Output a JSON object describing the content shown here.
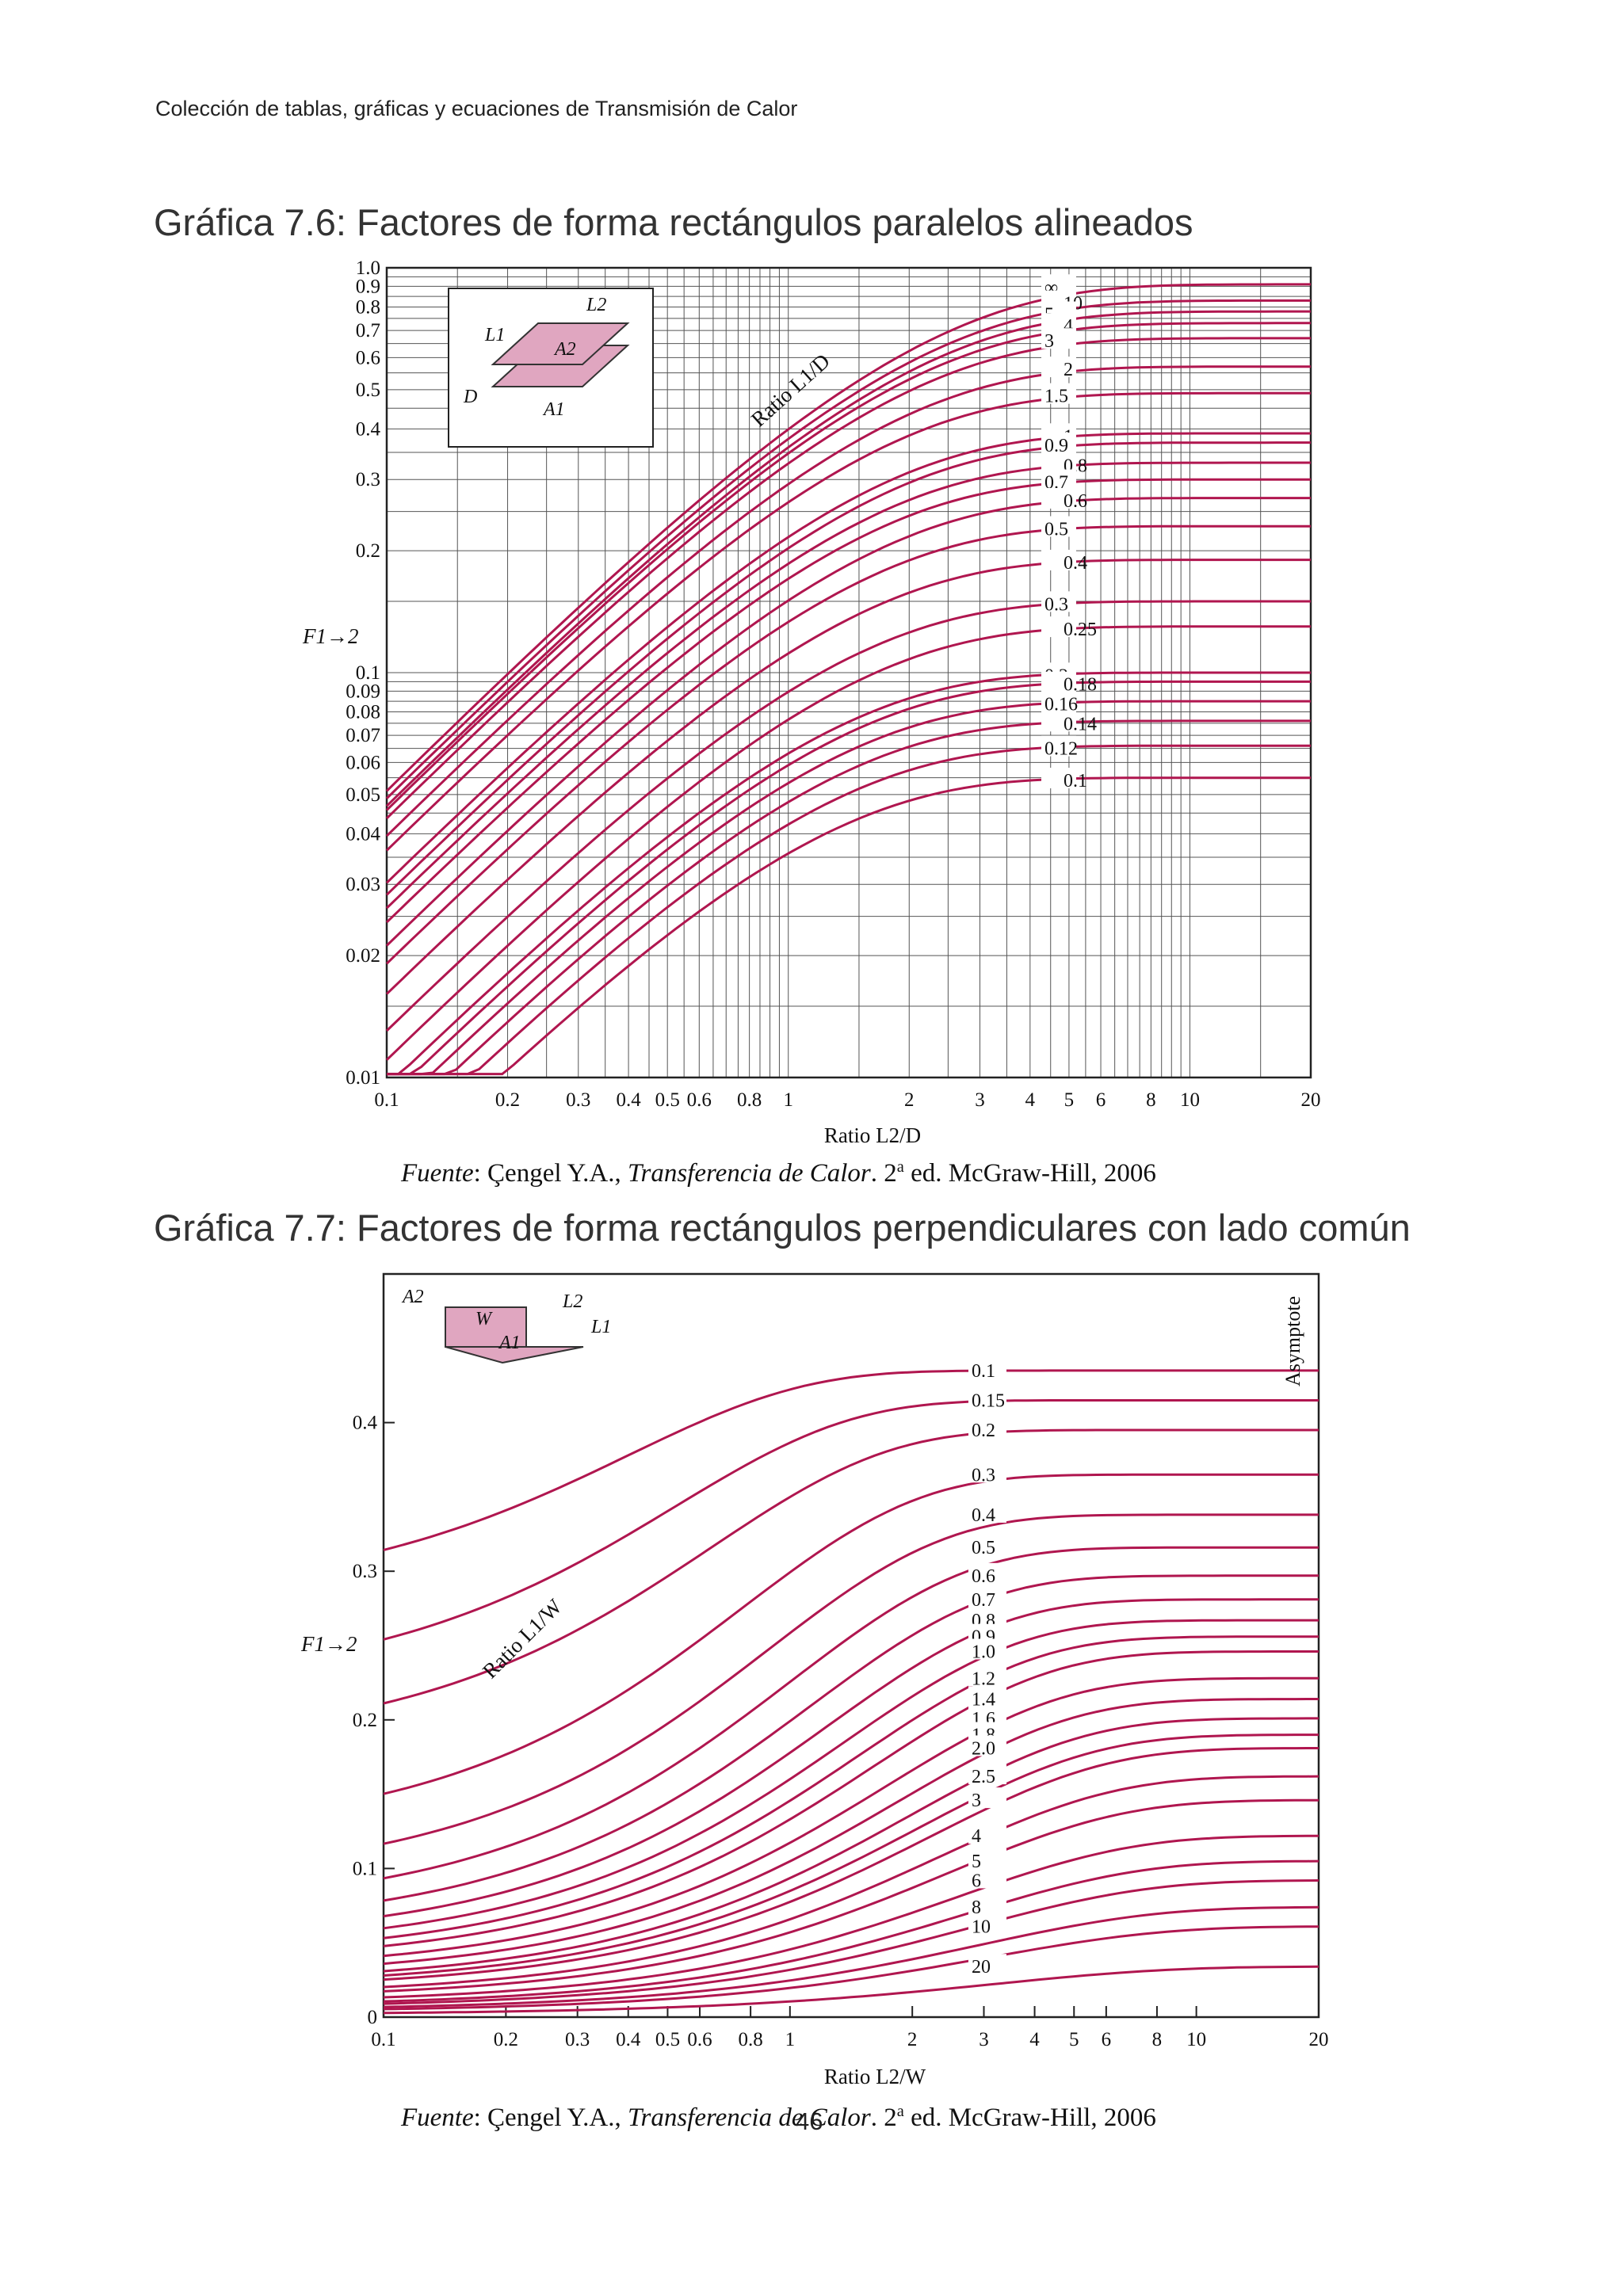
{
  "header": "Colección de tablas, gráficas y ecuaciones de Transmisión de Calor",
  "page_number": "46",
  "source": {
    "prefix": "Fuente",
    "author": ": Çengel Y.A., ",
    "book": "Transferencia de Calor",
    "edition_num": ". 2",
    "edition_sup": "a",
    "rest": " ed. McGraw-Hill, 2006"
  },
  "colors": {
    "curve": "#b0164f",
    "grid": "#555555",
    "inset_fill": "#e0a6c0"
  },
  "chart_data": [
    {
      "type": "line",
      "title": "Gráfica 7.6: Factores de forma rectángulos paralelos alineados",
      "xlabel": "Ratio L2/D",
      "ylabel": "F1→2",
      "xscale": "log",
      "yscale": "log",
      "xlim": [
        0.1,
        20
      ],
      "ylim": [
        0.01,
        1.0
      ],
      "x_ticks": [
        "0.1",
        "0.2",
        "0.3",
        "0.4",
        "0.5",
        "0.6",
        "0.8",
        "1",
        "2",
        "3",
        "4",
        "5",
        "6",
        "8",
        "10",
        "20"
      ],
      "y_ticks": [
        "0.01",
        "0.02",
        "0.03",
        "0.04",
        "0.05",
        "0.06",
        "0.07",
        "0.08",
        "0.09",
        "0.1",
        "0.2",
        "0.3",
        "0.4",
        "0.5",
        "0.6",
        "0.7",
        "0.8",
        "0.9",
        "1.0"
      ],
      "curve_family_label": "Ratio L1/D",
      "inset_labels": {
        "length2": "L2",
        "length1": "L1",
        "distance": "D",
        "area2": "A2",
        "area1": "A1"
      },
      "grid": true,
      "series": [
        {
          "name": "∞",
          "x": [
            0.1,
            20
          ],
          "y": [
            0.05,
            0.91
          ]
        },
        {
          "name": "10",
          "x": [
            0.1,
            20
          ],
          "y": [
            0.048,
            0.83
          ]
        },
        {
          "name": "5",
          "x": [
            0.1,
            20
          ],
          "y": [
            0.046,
            0.78
          ]
        },
        {
          "name": "4",
          "x": [
            0.1,
            20
          ],
          "y": [
            0.045,
            0.73
          ]
        },
        {
          "name": "3",
          "x": [
            0.1,
            20
          ],
          "y": [
            0.043,
            0.67
          ]
        },
        {
          "name": "2",
          "x": [
            0.1,
            20
          ],
          "y": [
            0.039,
            0.57
          ]
        },
        {
          "name": "1.5",
          "x": [
            0.1,
            20
          ],
          "y": [
            0.036,
            0.49
          ]
        },
        {
          "name": "1",
          "x": [
            0.1,
            20
          ],
          "y": [
            0.03,
            0.39
          ]
        },
        {
          "name": "0.9",
          "x": [
            0.1,
            20
          ],
          "y": [
            0.028,
            0.37
          ]
        },
        {
          "name": "0.8",
          "x": [
            0.1,
            20
          ],
          "y": [
            0.026,
            0.33
          ]
        },
        {
          "name": "0.7",
          "x": [
            0.1,
            20
          ],
          "y": [
            0.024,
            0.3
          ]
        },
        {
          "name": "0.6",
          "x": [
            0.1,
            20
          ],
          "y": [
            0.021,
            0.27
          ]
        },
        {
          "name": "0.5",
          "x": [
            0.1,
            20
          ],
          "y": [
            0.019,
            0.23
          ]
        },
        {
          "name": "0.4",
          "x": [
            0.1,
            20
          ],
          "y": [
            0.016,
            0.19
          ]
        },
        {
          "name": "0.3",
          "x": [
            0.1,
            20
          ],
          "y": [
            0.013,
            0.15
          ]
        },
        {
          "name": "0.25",
          "x": [
            0.1,
            20
          ],
          "y": [
            0.011,
            0.13
          ]
        },
        {
          "name": "0.2",
          "x": [
            0.1,
            20
          ],
          "y": [
            0.0095,
            0.1
          ]
        },
        {
          "name": "0.18",
          "x": [
            0.1,
            20
          ],
          "y": [
            0.0088,
            0.095
          ]
        },
        {
          "name": "0.16",
          "x": [
            0.1,
            20
          ],
          "y": [
            0.008,
            0.085
          ]
        },
        {
          "name": "0.14",
          "x": [
            0.1,
            20
          ],
          "y": [
            0.0072,
            0.076
          ]
        },
        {
          "name": "0.12",
          "x": [
            0.1,
            20
          ],
          "y": [
            0.0064,
            0.066
          ]
        },
        {
          "name": "0.1",
          "x": [
            0.1,
            20
          ],
          "y": [
            0.0055,
            0.055
          ]
        }
      ]
    },
    {
      "type": "line",
      "title": "Gráfica 7.7: Factores de forma rectángulos perpendiculares con lado común",
      "xlabel": "Ratio L2/W",
      "ylabel": "F1→2",
      "xscale": "log",
      "yscale": "linear",
      "xlim": [
        0.1,
        20
      ],
      "ylim": [
        0,
        0.5
      ],
      "x_ticks": [
        "0.1",
        "0.2",
        "0.3",
        "0.4",
        "0.5",
        "0.6",
        "0.8",
        "1",
        "2",
        "3",
        "4",
        "5",
        "6",
        "8",
        "10",
        "20"
      ],
      "y_ticks": [
        "0",
        "0.1",
        "0.2",
        "0.3",
        "0.4"
      ],
      "curve_family_label": "Ratio L1/W",
      "asymptote_label": "Asymptote",
      "inset_labels": {
        "area2": "A2",
        "width": "W",
        "area1": "A1",
        "length2": "L2",
        "length1": "L1"
      },
      "grid": true,
      "series": [
        {
          "name": "0.1",
          "x": [
            0.1,
            20
          ],
          "y": [
            0.28,
            0.435
          ]
        },
        {
          "name": "0.15",
          "x": [
            0.1,
            20
          ],
          "y": [
            0.22,
            0.415
          ]
        },
        {
          "name": "0.2",
          "x": [
            0.1,
            20
          ],
          "y": [
            0.18,
            0.395
          ]
        },
        {
          "name": "0.3",
          "x": [
            0.1,
            20
          ],
          "y": [
            0.12,
            0.365
          ]
        },
        {
          "name": "0.4",
          "x": [
            0.1,
            20
          ],
          "y": [
            0.09,
            0.338
          ]
        },
        {
          "name": "0.5",
          "x": [
            0.1,
            20
          ],
          "y": [
            0.07,
            0.316
          ]
        },
        {
          "name": "0.6",
          "x": [
            0.1,
            20
          ],
          "y": [
            0.058,
            0.297
          ]
        },
        {
          "name": "0.7",
          "x": [
            0.1,
            20
          ],
          "y": [
            0.05,
            0.281
          ]
        },
        {
          "name": "0.8",
          "x": [
            0.1,
            20
          ],
          "y": [
            0.044,
            0.267
          ]
        },
        {
          "name": "0.9",
          "x": [
            0.1,
            20
          ],
          "y": [
            0.039,
            0.256
          ]
        },
        {
          "name": "1.0",
          "x": [
            0.1,
            20
          ],
          "y": [
            0.035,
            0.246
          ]
        },
        {
          "name": "1.2",
          "x": [
            0.1,
            20
          ],
          "y": [
            0.03,
            0.228
          ]
        },
        {
          "name": "1.4",
          "x": [
            0.1,
            20
          ],
          "y": [
            0.026,
            0.214
          ]
        },
        {
          "name": "1.6",
          "x": [
            0.1,
            20
          ],
          "y": [
            0.022,
            0.201
          ]
        },
        {
          "name": "1.8",
          "x": [
            0.1,
            20
          ],
          "y": [
            0.02,
            0.19
          ]
        },
        {
          "name": "2.0",
          "x": [
            0.1,
            20
          ],
          "y": [
            0.018,
            0.181
          ]
        },
        {
          "name": "2.5",
          "x": [
            0.1,
            20
          ],
          "y": [
            0.014,
            0.162
          ]
        },
        {
          "name": "3",
          "x": [
            0.1,
            20
          ],
          "y": [
            0.012,
            0.146
          ]
        },
        {
          "name": "4",
          "x": [
            0.1,
            20
          ],
          "y": [
            0.009,
            0.122
          ]
        },
        {
          "name": "5",
          "x": [
            0.1,
            20
          ],
          "y": [
            0.007,
            0.105
          ]
        },
        {
          "name": "6",
          "x": [
            0.1,
            20
          ],
          "y": [
            0.006,
            0.092
          ]
        },
        {
          "name": "8",
          "x": [
            0.1,
            20
          ],
          "y": [
            0.0045,
            0.074
          ]
        },
        {
          "name": "10",
          "x": [
            0.1,
            20
          ],
          "y": [
            0.0035,
            0.061
          ]
        },
        {
          "name": "20",
          "x": [
            0.1,
            20
          ],
          "y": [
            0.0018,
            0.034
          ]
        }
      ]
    }
  ]
}
